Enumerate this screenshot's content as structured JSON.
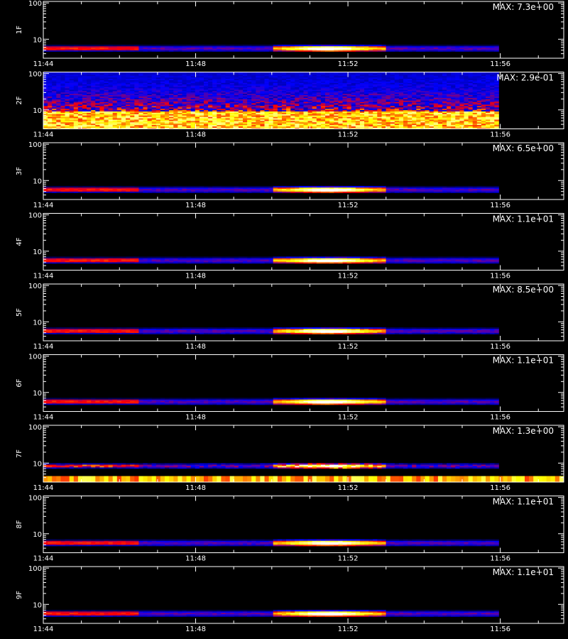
{
  "chart_data": {
    "type": "heatmap",
    "time_range": [
      "11:44",
      "11:57:40"
    ],
    "x_ticks": [
      "11:44",
      "11:48",
      "11:52",
      "11:56"
    ],
    "y_scale": "log",
    "y_range": [
      3,
      110
    ],
    "y_ticks": [
      10,
      100
    ],
    "colormap": [
      "#000000",
      "#0000ff",
      "#ff0000",
      "#ffff00",
      "#ffffff"
    ],
    "data_end": "11:56",
    "panels": [
      {
        "ylabel": "1F",
        "max_label": "MAX: 7.3e+00",
        "max": 7.3,
        "band_freq": [
          4.5,
          7
        ],
        "bright_time": [
          "11:50",
          "11:53"
        ],
        "peak_time": "11:51:30",
        "noise": "low"
      },
      {
        "ylabel": "2F",
        "max_label": "MAX: 2.9e-01",
        "max": 0.29,
        "band_freq": [
          3,
          9
        ],
        "bright_time": null,
        "peak_time": null,
        "noise": "high"
      },
      {
        "ylabel": "3F",
        "max_label": "MAX: 6.5e+00",
        "max": 6.5,
        "band_freq": [
          4.5,
          7
        ],
        "bright_time": [
          "11:50",
          "11:53"
        ],
        "peak_time": "11:51:30",
        "noise": "low"
      },
      {
        "ylabel": "4F",
        "max_label": "MAX: 1.1e+01",
        "max": 11,
        "band_freq": [
          4.5,
          7
        ],
        "bright_time": [
          "11:50",
          "11:53"
        ],
        "peak_time": "11:51:30",
        "noise": "low"
      },
      {
        "ylabel": "5F",
        "max_label": "MAX: 8.5e+00",
        "max": 8.5,
        "band_freq": [
          4.5,
          7
        ],
        "bright_time": [
          "11:50",
          "11:53"
        ],
        "peak_time": "11:51:30",
        "noise": "low"
      },
      {
        "ylabel": "6F",
        "max_label": "MAX: 1.1e+01",
        "max": 11,
        "band_freq": [
          4.5,
          7
        ],
        "bright_time": [
          "11:50",
          "11:53"
        ],
        "peak_time": "11:51:30",
        "noise": "low"
      },
      {
        "ylabel": "7F",
        "max_label": "MAX: 1.3e+00",
        "max": 1.3,
        "band_freq": [
          7,
          10
        ],
        "bright_time": [
          "11:50",
          "11:53"
        ],
        "peak_time": "11:51:30",
        "noise": "medium",
        "bottom_strip": true
      },
      {
        "ylabel": "8F",
        "max_label": "MAX: 1.1e+01",
        "max": 11,
        "band_freq": [
          4.5,
          7
        ],
        "bright_time": [
          "11:50",
          "11:53"
        ],
        "peak_time": "11:51:30",
        "noise": "low"
      },
      {
        "ylabel": "9F",
        "max_label": "MAX: 1.1e+01",
        "max": 11,
        "band_freq": [
          4.5,
          7
        ],
        "bright_time": [
          "11:50",
          "11:53"
        ],
        "peak_time": "11:51:30",
        "noise": "low"
      }
    ]
  }
}
